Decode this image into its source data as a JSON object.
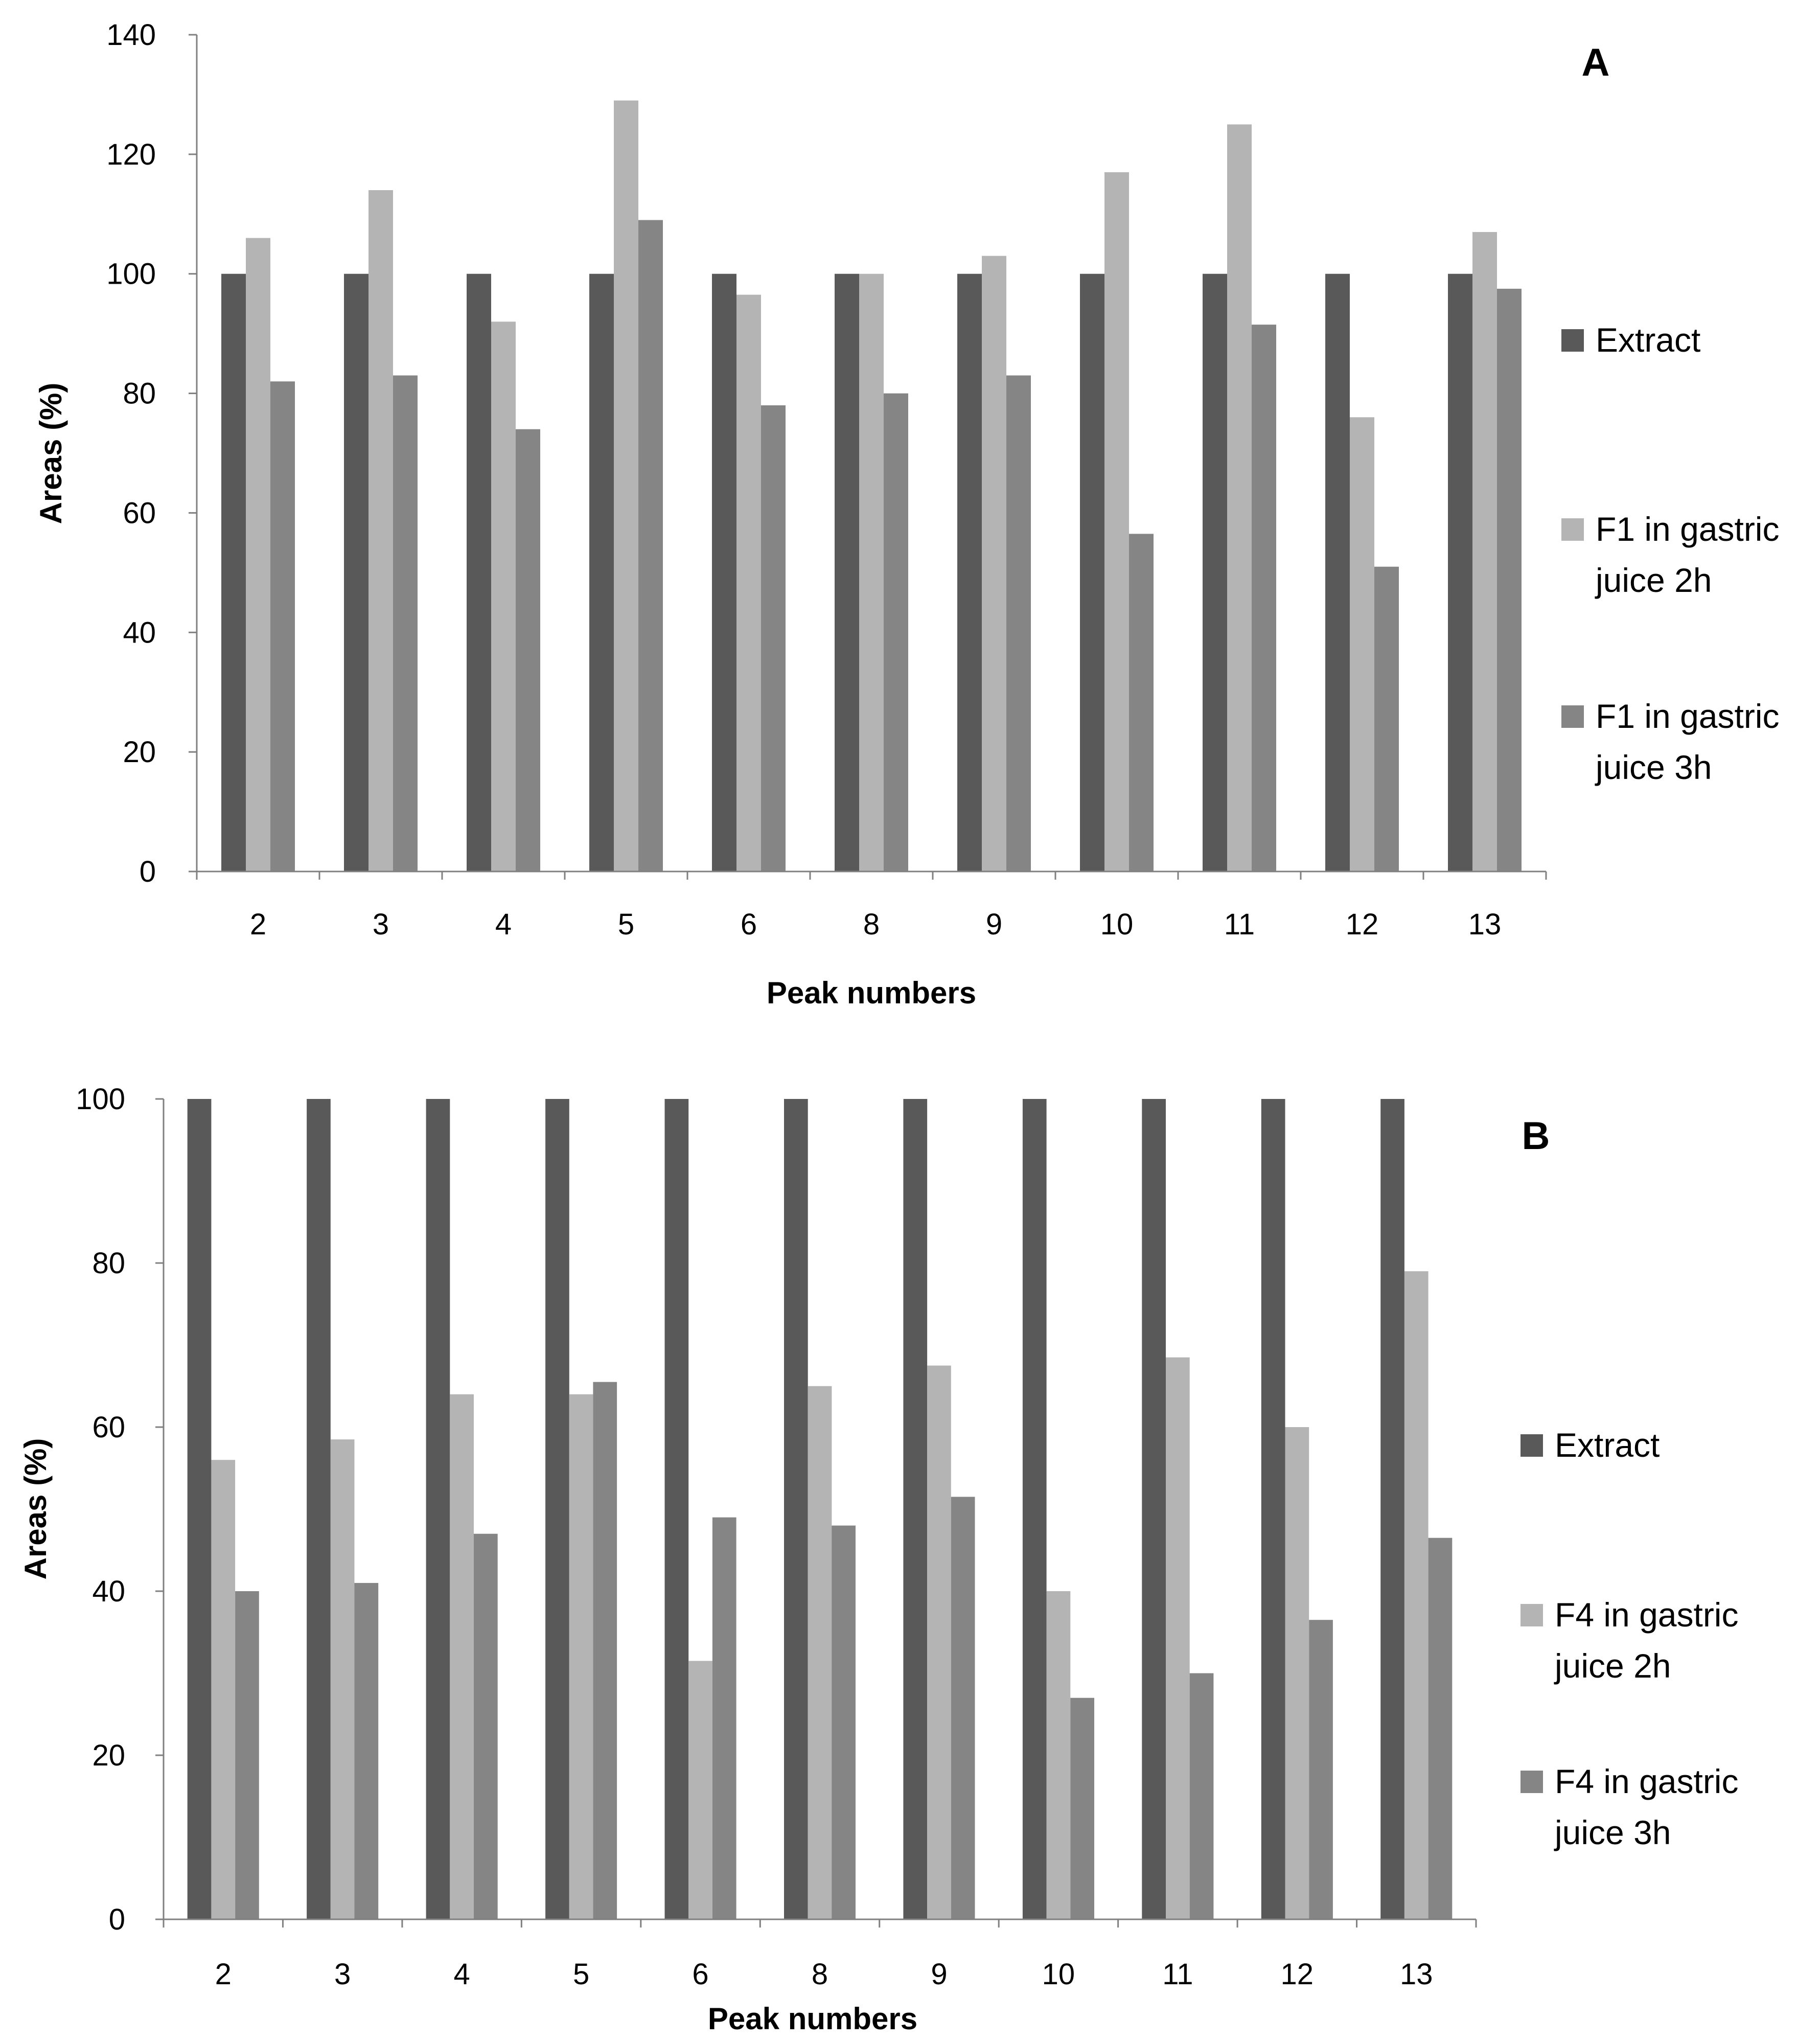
{
  "chart_data": [
    {
      "type": "bar",
      "panel_label": "A",
      "categories": [
        "2",
        "3",
        "4",
        "5",
        "6",
        "8",
        "9",
        "10",
        "11",
        "12",
        "13"
      ],
      "series": [
        {
          "name": "Extract",
          "values": [
            100,
            100,
            100,
            100,
            100,
            100,
            100,
            100,
            100,
            100,
            100
          ]
        },
        {
          "name": "F1 in gastric juice 2h",
          "values": [
            106,
            114,
            92,
            129,
            96.5,
            100,
            103,
            117,
            125,
            76,
            107
          ]
        },
        {
          "name": "F1 in gastric juice 3h",
          "values": [
            82,
            83,
            74,
            109,
            78,
            80,
            83,
            56.5,
            91.5,
            51,
            97.5
          ]
        }
      ],
      "legend_lines": [
        [
          "Extract"
        ],
        [
          "F1 in gastric",
          "juice 2h"
        ],
        [
          "F1 in gastric",
          "juice 3h"
        ]
      ],
      "xlabel": "Peak numbers",
      "ylabel": "Areas (%)",
      "ylim": [
        0,
        140
      ],
      "yticks": [
        "0",
        "20",
        "40",
        "60",
        "80",
        "100",
        "120",
        "140"
      ],
      "legend_position": "right",
      "grid": false
    },
    {
      "type": "bar",
      "panel_label": "B",
      "categories": [
        "2",
        "3",
        "4",
        "5",
        "6",
        "8",
        "9",
        "10",
        "11",
        "12",
        "13"
      ],
      "series": [
        {
          "name": "Extract",
          "values": [
            100,
            100,
            100,
            100,
            100,
            100,
            100,
            100,
            100,
            100,
            100
          ]
        },
        {
          "name": "F4 in gastric juice 2h",
          "values": [
            56,
            58.5,
            64,
            64,
            31.5,
            65,
            67.5,
            40,
            68.5,
            60,
            79
          ]
        },
        {
          "name": "F4 in gastric juice 3h",
          "values": [
            40,
            41,
            47,
            65.5,
            49,
            48,
            51.5,
            27,
            30,
            36.5,
            46.5
          ]
        }
      ],
      "legend_lines": [
        [
          "Extract"
        ],
        [
          "F4 in gastric",
          "juice 2h"
        ],
        [
          "F4 in gastric",
          "juice 3h"
        ]
      ],
      "xlabel": "Peak numbers",
      "ylabel": "Areas (%)",
      "ylim": [
        0,
        100
      ],
      "yticks": [
        "0",
        "20",
        "40",
        "60",
        "80",
        "100"
      ],
      "legend_position": "right",
      "grid": false
    }
  ],
  "colors": [
    "#595959",
    "#b4b4b4",
    "#858585"
  ]
}
